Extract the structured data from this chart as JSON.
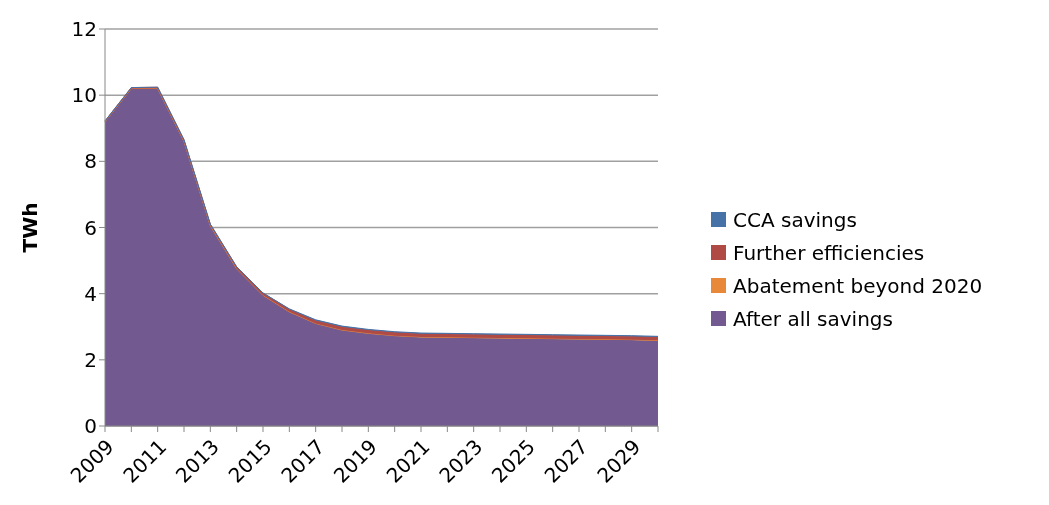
{
  "chart_data": {
    "type": "area",
    "stacked": true,
    "ylabel": "TWh",
    "categories": [
      "2009",
      null,
      "2011",
      null,
      "2013",
      null,
      "2015",
      null,
      "2017",
      null,
      "2019",
      null,
      "2021",
      null,
      "2023",
      null,
      "2025",
      null,
      "2027",
      null,
      "2029",
      null
    ],
    "series": [
      {
        "name": "After all savings",
        "color": "#725990",
        "values": [
          9.2,
          10.2,
          10.2,
          8.6,
          6.05,
          4.75,
          3.95,
          3.45,
          3.1,
          2.9,
          2.8,
          2.73,
          2.68,
          2.67,
          2.66,
          2.65,
          2.64,
          2.63,
          2.62,
          2.61,
          2.6,
          2.58
        ]
      },
      {
        "name": "Abatement beyond 2020",
        "color": "#e8893a",
        "values": [
          0,
          0,
          0,
          0,
          0,
          0,
          0,
          0,
          0,
          0,
          0,
          0,
          0.01,
          0.01,
          0.01,
          0.01,
          0.01,
          0.01,
          0.01,
          0.01,
          0.01,
          0.01
        ]
      },
      {
        "name": "Further efficiencies",
        "color": "#b04a44",
        "values": [
          0.02,
          0.03,
          0.04,
          0.05,
          0.05,
          0.06,
          0.07,
          0.08,
          0.09,
          0.1,
          0.1,
          0.1,
          0.1,
          0.1,
          0.1,
          0.1,
          0.1,
          0.1,
          0.1,
          0.1,
          0.1,
          0.1
        ]
      },
      {
        "name": "CCA savings",
        "color": "#4672a8",
        "values": [
          0,
          0,
          0,
          0,
          0,
          0,
          0,
          0.01,
          0.02,
          0.02,
          0.02,
          0.02,
          0.02,
          0.02,
          0.02,
          0.02,
          0.02,
          0.02,
          0.02,
          0.02,
          0.02,
          0.02
        ]
      }
    ],
    "ylim": [
      0,
      12
    ],
    "yticks": [
      0,
      2,
      4,
      6,
      8,
      10,
      12
    ],
    "grid": "y",
    "legend": "right"
  }
}
